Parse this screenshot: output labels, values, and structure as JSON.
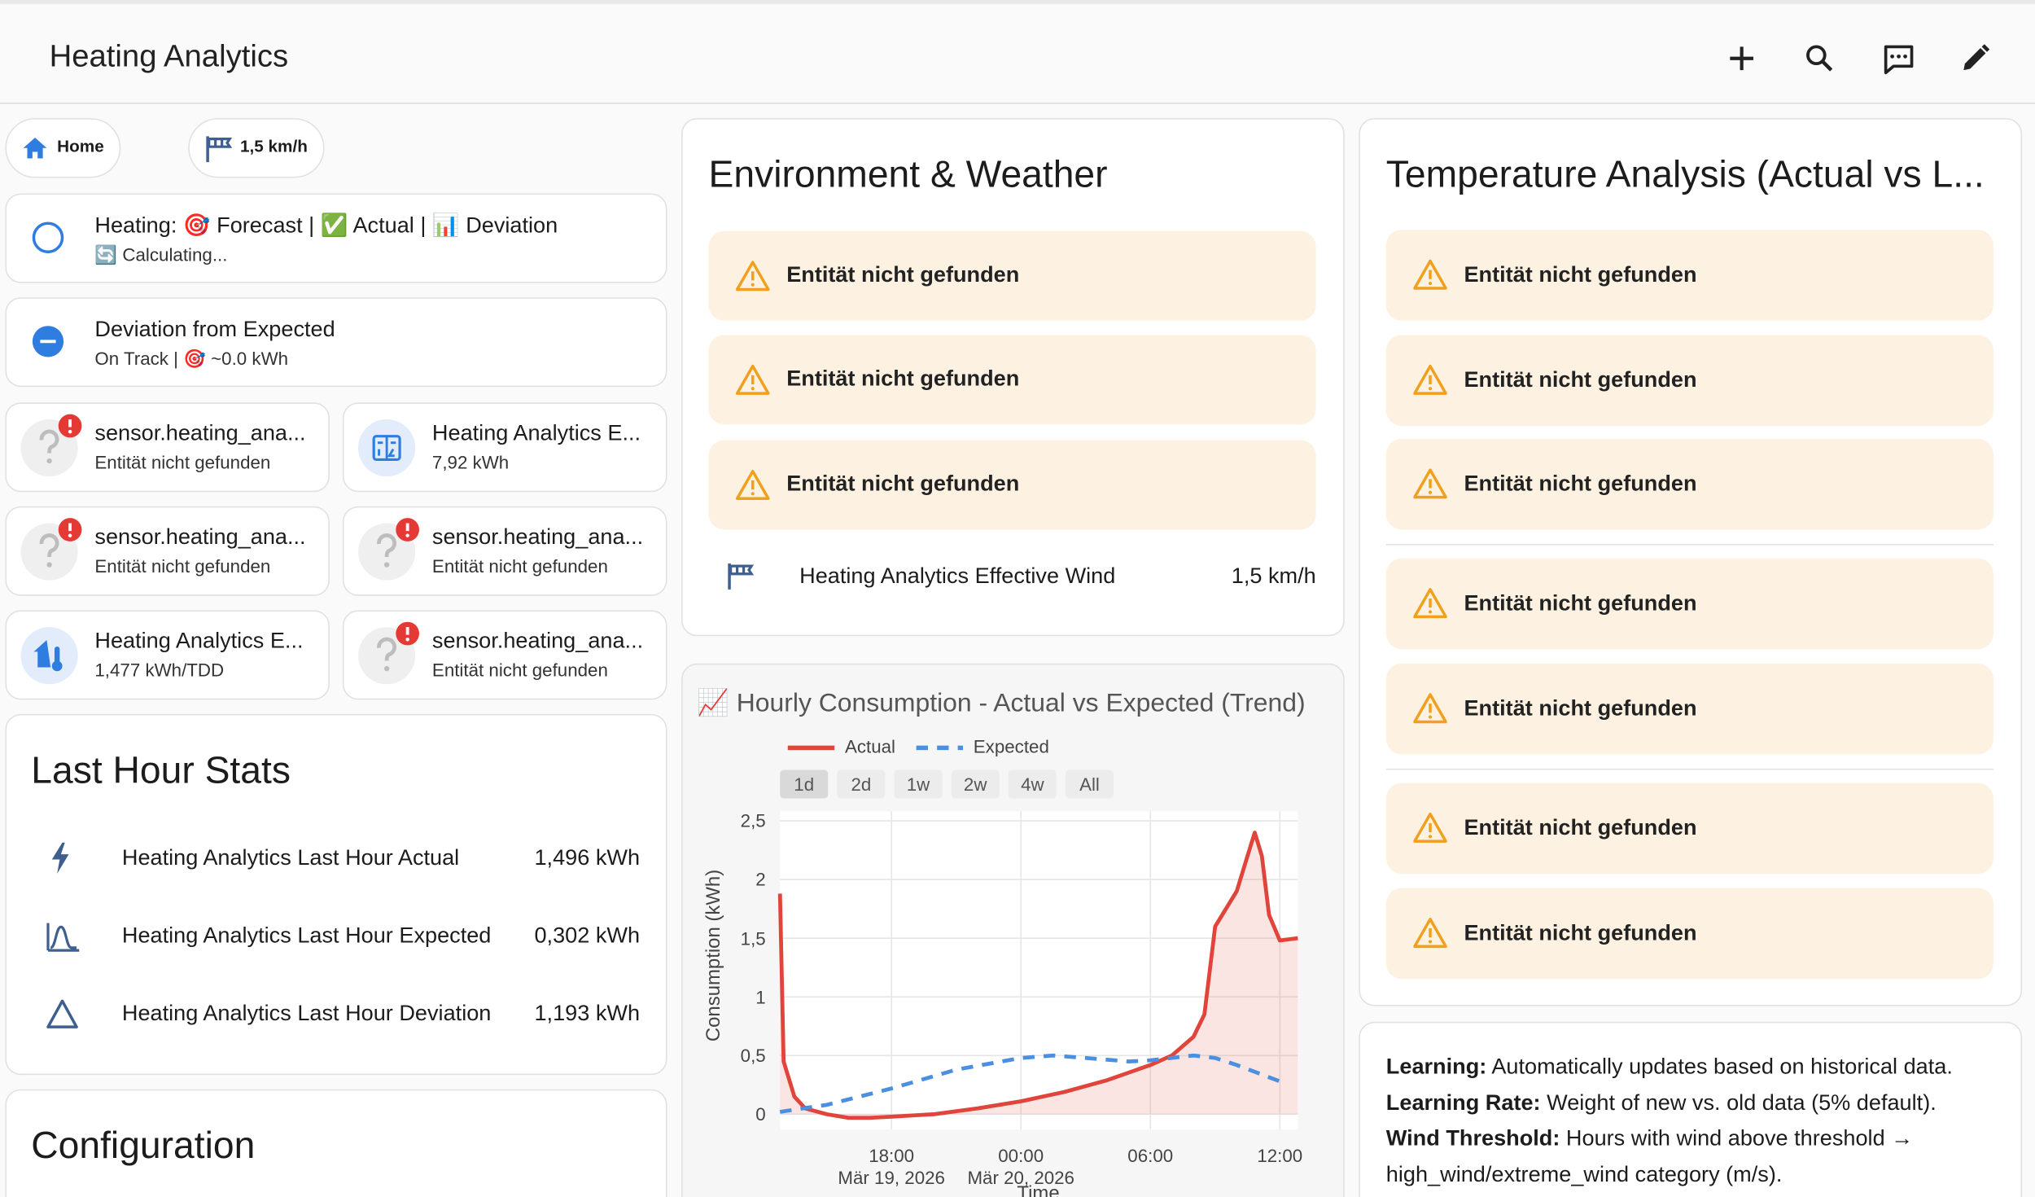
{
  "header": {
    "title": "Heating Analytics"
  },
  "chips": [
    {
      "label": "Home"
    },
    {
      "label": "1,5 km/h"
    }
  ],
  "status_cards": [
    {
      "title": "Heating: 🎯 Forecast | ✅ Actual | 📊 Deviation",
      "subtitle": "🔄 Calculating..."
    },
    {
      "title": "Deviation from Expected",
      "subtitle": "On Track | 🎯 ~0.0 kWh"
    }
  ],
  "tiles": [
    {
      "name": "sensor.heating_ana...",
      "state": "Entität nicht gefunden"
    },
    {
      "name": "Heating Analytics E...",
      "state": "7,92 kWh"
    },
    {
      "name": "sensor.heating_ana...",
      "state": "Entität nicht gefunden"
    },
    {
      "name": "sensor.heating_ana...",
      "state": "Entität nicht gefunden"
    },
    {
      "name": "Heating Analytics E...",
      "state": "1,477 kWh/TDD"
    },
    {
      "name": "sensor.heating_ana...",
      "state": "Entität nicht gefunden"
    }
  ],
  "last_hour_stats": {
    "title": "Last Hour Stats",
    "rows": [
      {
        "label": "Heating Analytics Last Hour Actual",
        "value": "1,496 kWh"
      },
      {
        "label": "Heating Analytics Last Hour Expected",
        "value": "0,302 kWh"
      },
      {
        "label": "Heating Analytics Last Hour Deviation",
        "value": "1,193 kWh"
      }
    ]
  },
  "configuration": {
    "title": "Configuration"
  },
  "environment": {
    "title": "Environment & Weather",
    "warnings": [
      "Entität nicht gefunden",
      "Entität nicht gefunden",
      "Entität nicht gefunden"
    ],
    "row": {
      "label": "Heating Analytics Effective Wind",
      "value": "1,5 km/h"
    }
  },
  "temperature": {
    "title": "Temperature Analysis (Actual vs L...",
    "warnings": [
      "Entität nicht gefunden",
      "Entität nicht gefunden",
      "Entität nicht gefunden",
      "Entität nicht gefunden",
      "Entität nicht gefunden",
      "Entität nicht gefunden",
      "Entität nicht gefunden"
    ]
  },
  "notes": [
    {
      "term": "Learning:",
      "text": "Automatically updates based on historical data."
    },
    {
      "term": "Learning Rate:",
      "text": "Weight of new vs. old data (5% default)."
    },
    {
      "term": "Wind Threshold:",
      "text": "Hours with wind above threshold → high_wind/extreme_wind category (m/s)."
    }
  ],
  "chart_data": {
    "type": "line",
    "title": "📈 Hourly Consumption - Actual vs Expected (Trend)",
    "range_buttons": [
      "1d",
      "2d",
      "1w",
      "2w",
      "4w",
      "All"
    ],
    "y_label": "Consumption (kWh)",
    "x_label": "Time",
    "grid": true,
    "xlim": [
      "2026-03-19T12:50",
      "2026-03-20T12:50"
    ],
    "xticks": [
      {
        "value": "2026-03-19T18:00",
        "label": "18:00\nMär 19, 2026"
      },
      {
        "value": "2026-03-20T00:00",
        "label": "00:00\nMär 20, 2026"
      },
      {
        "value": "2026-03-20T06:00",
        "label": "06:00"
      },
      {
        "value": "2026-03-20T12:00",
        "label": "12:00"
      }
    ],
    "ylim": [
      -0.13,
      2.58
    ],
    "yticks": [
      0,
      {
        "value": 0.5,
        "label": "0,5"
      },
      1,
      {
        "value": 1.5,
        "label": "1,5"
      },
      2,
      {
        "value": 2.5,
        "label": "2,5"
      }
    ],
    "series": [
      {
        "name": "Actual",
        "color": "#e0443a",
        "fill": true,
        "dash": false,
        "x": [
          "2026-03-19T12:50",
          "2026-03-19T13:00",
          "2026-03-19T13:30",
          "2026-03-19T14:00",
          "2026-03-19T15:00",
          "2026-03-19T16:00",
          "2026-03-19T17:00",
          "2026-03-19T18:00",
          "2026-03-19T20:00",
          "2026-03-19T22:00",
          "2026-03-20T00:00",
          "2026-03-20T02:00",
          "2026-03-20T04:00",
          "2026-03-20T06:00",
          "2026-03-20T07:00",
          "2026-03-20T08:00",
          "2026-03-20T08:30",
          "2026-03-20T09:00",
          "2026-03-20T09:30",
          "2026-03-20T10:00",
          "2026-03-20T10:30",
          "2026-03-20T10:50",
          "2026-03-20T11:10",
          "2026-03-20T11:30",
          "2026-03-20T12:00",
          "2026-03-20T12:50"
        ],
        "values": [
          1.88,
          0.45,
          0.15,
          0.05,
          0.0,
          -0.03,
          -0.03,
          -0.02,
          0.0,
          0.05,
          0.11,
          0.19,
          0.29,
          0.42,
          0.5,
          0.66,
          0.85,
          1.6,
          1.75,
          1.9,
          2.2,
          2.4,
          2.2,
          1.7,
          1.48,
          1.5
        ]
      },
      {
        "name": "Expected",
        "color": "#4a8fe0",
        "fill": false,
        "dash": true,
        "x": [
          "2026-03-19T12:50",
          "2026-03-19T15:00",
          "2026-03-19T18:00",
          "2026-03-19T21:00",
          "2026-03-20T00:00",
          "2026-03-20T01:30",
          "2026-03-20T03:00",
          "2026-03-20T05:00",
          "2026-03-20T06:00",
          "2026-03-20T08:00",
          "2026-03-20T09:00",
          "2026-03-20T10:00",
          "2026-03-20T11:00",
          "2026-03-20T12:00"
        ],
        "values": [
          0.02,
          0.08,
          0.22,
          0.38,
          0.48,
          0.5,
          0.48,
          0.45,
          0.46,
          0.5,
          0.48,
          0.42,
          0.35,
          0.28
        ]
      }
    ]
  }
}
